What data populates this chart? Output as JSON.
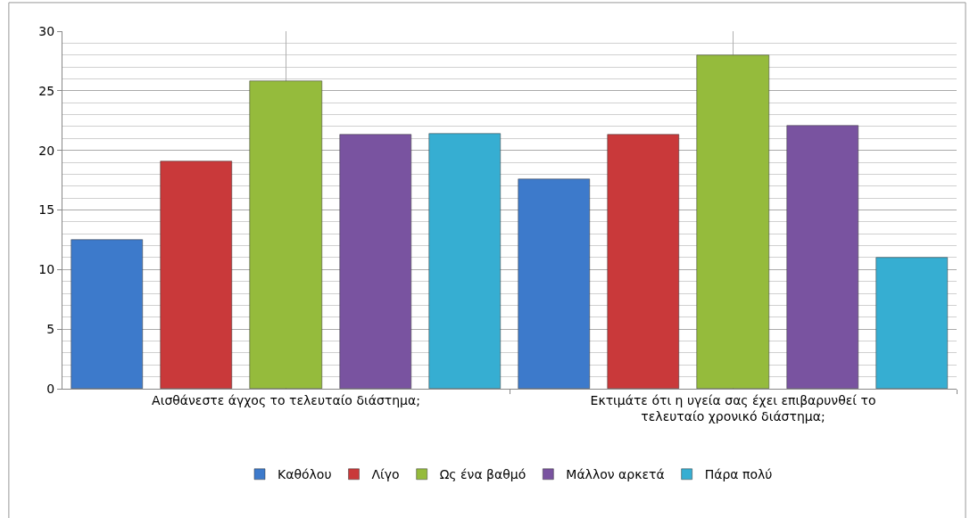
{
  "chart_data": {
    "type": "bar",
    "categories": [
      "Αισθάνεστε άγχος το τελευταίο διάστημα;",
      "Εκτιμάτε ότι η υγεία σας έχει επιβαρυνθεί το τελευταίο χρονικό διάστημα;"
    ],
    "series": [
      {
        "name": "Καθόλου",
        "color": "#3d7acb",
        "values": [
          12.5,
          17.6
        ]
      },
      {
        "name": "Λίγο",
        "color": "#c9393a",
        "values": [
          19.1,
          21.3
        ]
      },
      {
        "name": "Ως ένα βαθμό",
        "color": "#95bb3c",
        "values": [
          25.8,
          28.0
        ]
      },
      {
        "name": "Μάλλον αρκετά",
        "color": "#7953a0",
        "values": [
          21.3,
          22.1
        ]
      },
      {
        "name": "Πάρα πολύ",
        "color": "#36aed2",
        "values": [
          21.4,
          11.0
        ]
      }
    ],
    "ylim": [
      0,
      30
    ],
    "yticks": [
      0,
      5,
      10,
      15,
      20,
      25,
      30
    ],
    "grid": true,
    "legend": "bottom"
  }
}
